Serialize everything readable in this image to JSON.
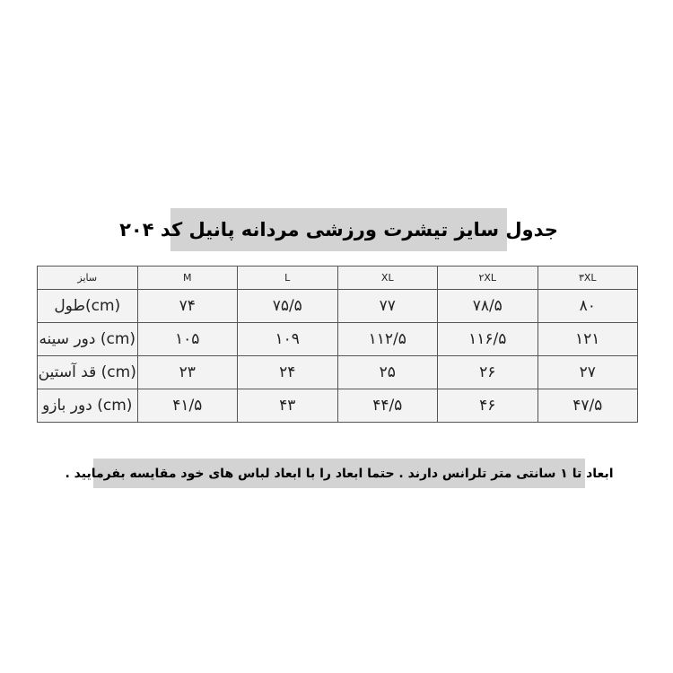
{
  "title": "جدول سایز تیشرت ورزشی مردانه پانیل کد ۲۰۴",
  "table": {
    "header": [
      "سایز",
      "M",
      "L",
      "XL",
      "۲XL",
      "۳XL"
    ],
    "rows": [
      {
        "label": "(cm)طول",
        "values": [
          "۷۴",
          "۷۵/۵",
          "۷۷",
          "۷۸/۵",
          "۸۰"
        ]
      },
      {
        "label": "(cm) دور سینه",
        "values": [
          "۱۰۵",
          "۱۰۹",
          "۱۱۲/۵",
          "۱۱۶/۵",
          "۱۲۱"
        ]
      },
      {
        "label": "(cm) قد آستین",
        "values": [
          "۲۳",
          "۲۴",
          "۲۵",
          "۲۶",
          "۲۷"
        ]
      },
      {
        "label": "(cm) دور بازو",
        "values": [
          "۴۱/۵",
          "۴۳",
          "۴۴/۵",
          "۴۶",
          "۴۷/۵"
        ]
      }
    ]
  },
  "note": "ابعاد تا ۱ سانتی متر تلرانس دارند . حتما ابعاد را با ابعاد لباس های خود مقایسه بفرمایید ."
}
